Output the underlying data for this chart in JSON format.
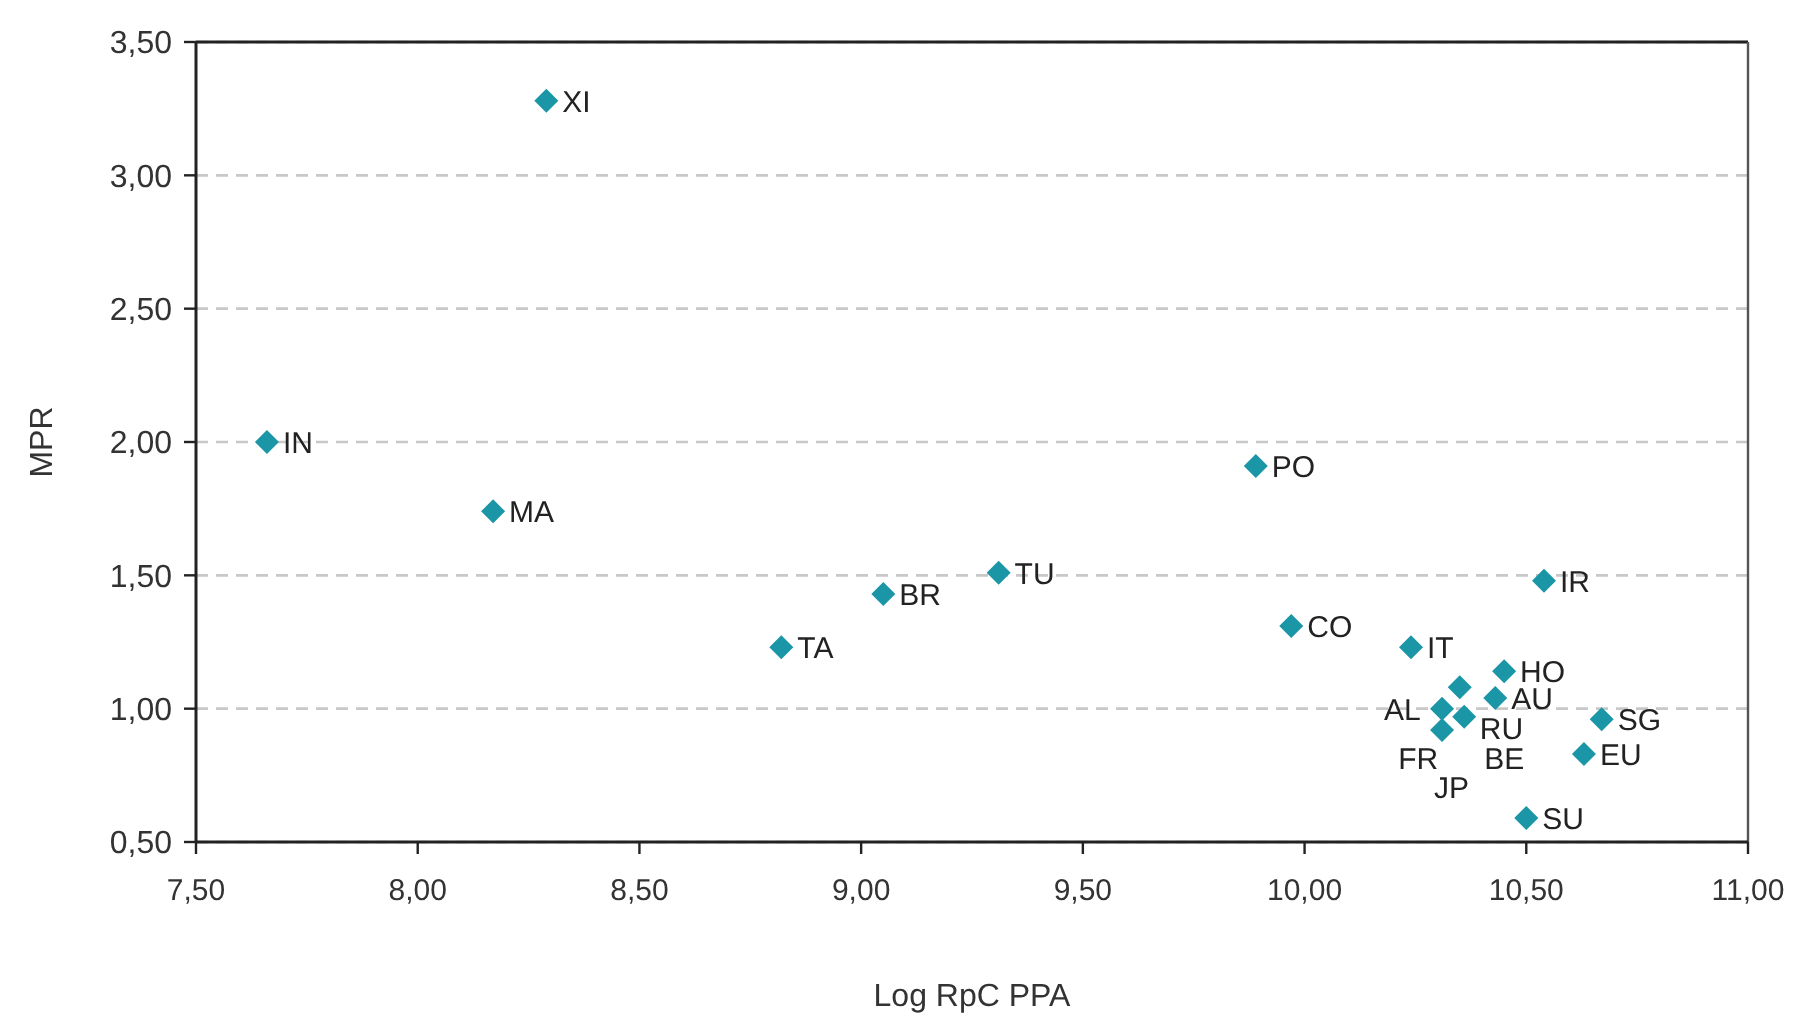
{
  "chart_data": {
    "type": "scatter",
    "xlabel": "Log RpC PPA",
    "ylabel": "MPR",
    "xlim": [
      7.5,
      11
    ],
    "xticks": [
      {
        "value": 7.5,
        "label": "7,50"
      },
      {
        "value": 8,
        "label": "8,00"
      },
      {
        "value": 8.5,
        "label": "8,50"
      },
      {
        "value": 9,
        "label": "9,00"
      },
      {
        "value": 9.5,
        "label": "9,50"
      },
      {
        "value": 10,
        "label": "10,00"
      },
      {
        "value": 10.5,
        "label": "10,50"
      },
      {
        "value": 11,
        "label": "11,00"
      }
    ],
    "ylim": [
      0.5,
      3.5
    ],
    "yticks": [
      {
        "value": 0.5,
        "label": "0,50"
      },
      {
        "value": 1,
        "label": "1,00"
      },
      {
        "value": 1.5,
        "label": "1,50"
      },
      {
        "value": 2,
        "label": "2,00"
      },
      {
        "value": 2.5,
        "label": "2,50"
      },
      {
        "value": 3,
        "label": "3,00"
      },
      {
        "value": 3.5,
        "label": "3,50"
      }
    ],
    "grid": "y",
    "marker": "diamond",
    "series": [
      {
        "color": "#1a96a6",
        "x": [
          8.29,
          7.66,
          8.17,
          8.82,
          9.05,
          9.31,
          9.89,
          9.97,
          10.54,
          10.24,
          10.45,
          10.35,
          10.43,
          10.31,
          10.36,
          10.31,
          10.67,
          10.63,
          10.5
        ],
        "values": [
          3.28,
          2.0,
          1.74,
          1.23,
          1.43,
          1.51,
          1.91,
          1.31,
          1.48,
          1.23,
          1.14,
          1.08,
          1.04,
          1.0,
          0.97,
          0.92,
          0.96,
          0.83,
          0.59
        ]
      }
    ],
    "annotations": [
      {
        "text": "XI",
        "x": 8.29,
        "y": 3.28
      },
      {
        "text": "IN",
        "x": 7.66,
        "y": 2.0
      },
      {
        "text": "MA",
        "x": 8.17,
        "y": 1.74
      },
      {
        "text": "TA",
        "x": 8.82,
        "y": 1.23
      },
      {
        "text": "BR",
        "x": 9.05,
        "y": 1.43
      },
      {
        "text": "TU",
        "x": 9.31,
        "y": 1.51
      },
      {
        "text": "PO",
        "x": 9.89,
        "y": 1.91
      },
      {
        "text": "CO",
        "x": 9.97,
        "y": 1.31
      },
      {
        "text": "IR",
        "x": 10.54,
        "y": 1.48
      },
      {
        "text": "IT",
        "x": 10.24,
        "y": 1.23
      },
      {
        "text": "HO",
        "x": 10.45,
        "y": 1.14
      },
      {
        "text": "RU",
        "x": 10.35,
        "y": 1.08
      },
      {
        "text": "AU",
        "x": 10.43,
        "y": 1.04
      },
      {
        "text": "AL",
        "x": 10.31,
        "y": 1.0
      },
      {
        "text": "BE",
        "x": 10.36,
        "y": 0.97
      },
      {
        "text": "FR",
        "x": 10.36,
        "y": 0.97
      },
      {
        "text": "JP",
        "x": 10.31,
        "y": 0.92
      },
      {
        "text": "SG",
        "x": 10.67,
        "y": 0.96
      },
      {
        "text": "EU",
        "x": 10.63,
        "y": 0.83
      },
      {
        "text": "SU",
        "x": 10.5,
        "y": 0.59
      }
    ]
  }
}
